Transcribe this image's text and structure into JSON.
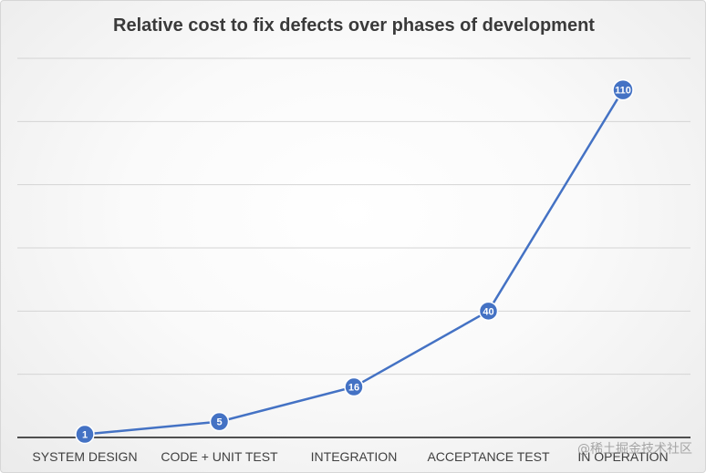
{
  "chart_data": {
    "type": "line",
    "title": "Relative cost to fix defects over phases of development",
    "categories": [
      "SYSTEM DESIGN",
      "CODE + UNIT TEST",
      "INTEGRATION",
      "ACCEPTANCE TEST",
      "IN OPERATION"
    ],
    "series": [
      {
        "values": [
          1,
          5,
          16,
          40,
          110
        ],
        "color": "#4472c4",
        "data_labels": [
          "1",
          "5",
          "16",
          "40",
          "110"
        ]
      }
    ],
    "ylim": [
      0,
      120
    ],
    "grid": true,
    "legend": "none"
  },
  "watermark": "@稀土掘金技术社区"
}
